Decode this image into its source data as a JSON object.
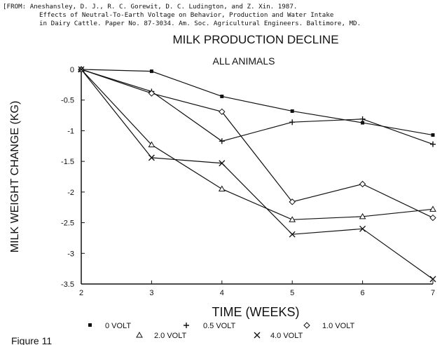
{
  "header": {
    "line1": "[FROM:  Aneshansley, D. J., R. C. Gorewit, D. C. Ludington, and Z. Xin.  1987.",
    "line2": "Effects of Neutral-To-Earth Voltage on Behavior, Production and Water Intake",
    "line3": "in Dairy Cattle. Paper No. 87-3034. Am. Soc. Agricultural Engineers. Baltimore, MD."
  },
  "figure_label": "Figure 11",
  "chart_data": {
    "type": "line",
    "title": "MILK PRODUCTION DECLINE",
    "subtitle": "ALL ANIMALS",
    "xlabel": "TIME (WEEKS)",
    "ylabel": "MILK WEIGHT CHANGE (KG)",
    "x": [
      2,
      3,
      4,
      5,
      6,
      7
    ],
    "xlim": [
      2,
      7
    ],
    "ylim": [
      -3.5,
      0
    ],
    "xticks": [
      "2",
      "3",
      "4",
      "5",
      "6",
      "7"
    ],
    "yticks": [
      "0",
      "-0.5",
      "-1",
      "-1.5",
      "-2",
      "-2.5",
      "-3",
      "-3.5"
    ],
    "grid": false,
    "legend_position": "bottom",
    "series": [
      {
        "name": "0 VOLT",
        "marker": "square",
        "values": [
          0,
          -0.03,
          -0.44,
          -0.68,
          -0.87,
          -1.07
        ]
      },
      {
        "name": "0.5 VOLT",
        "marker": "plus",
        "values": [
          0,
          -0.36,
          -1.17,
          -0.86,
          -0.81,
          -1.22
        ]
      },
      {
        "name": "1.0 VOLT",
        "marker": "diamond",
        "values": [
          0,
          -0.39,
          -0.69,
          -2.16,
          -1.87,
          -2.42
        ]
      },
      {
        "name": "2.0 VOLT",
        "marker": "triangle",
        "values": [
          0,
          -1.23,
          -1.95,
          -2.45,
          -2.4,
          -2.28
        ]
      },
      {
        "name": "4.0 VOLT",
        "marker": "x",
        "values": [
          0,
          -1.44,
          -1.53,
          -2.69,
          -2.6,
          -3.42
        ]
      }
    ]
  }
}
